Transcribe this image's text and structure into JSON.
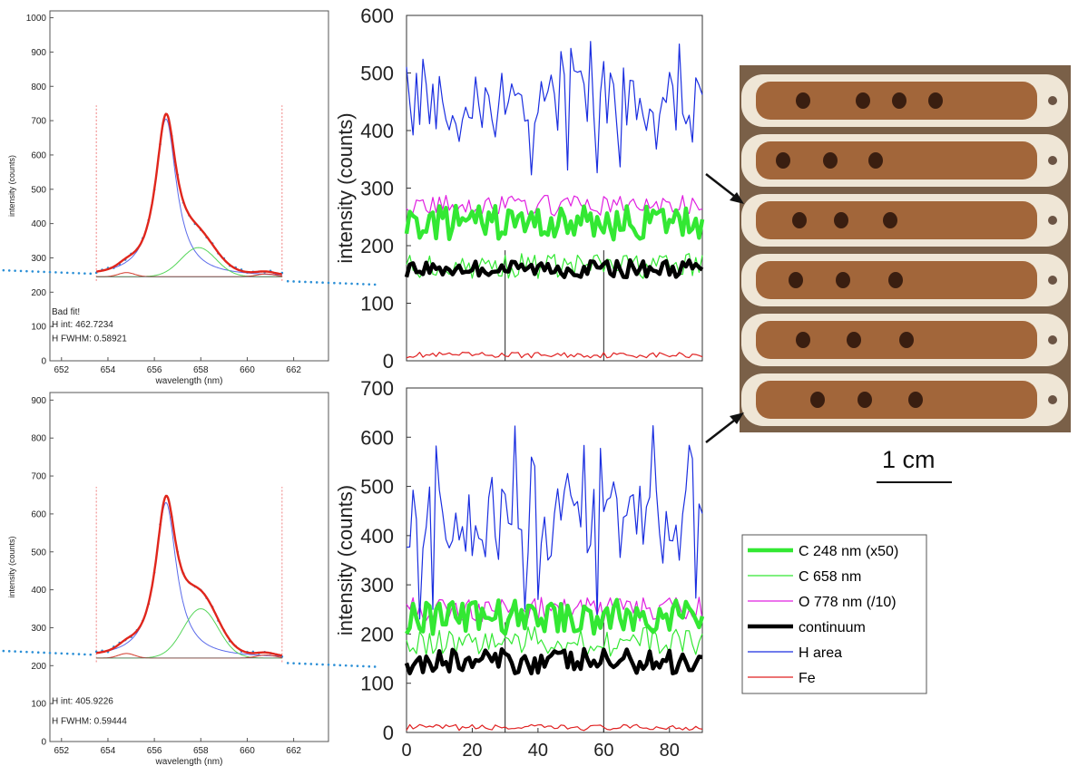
{
  "chart_data": [
    {
      "id": "spectrum_top",
      "type": "line",
      "xlabel": "wavelength (nm)",
      "ylabel": "intensity (counts)",
      "xlim": [
        651.5,
        663.5
      ],
      "ylim": [
        0,
        1020
      ],
      "xticks": [
        652,
        654,
        656,
        658,
        660,
        662
      ],
      "yticks": [
        0,
        100,
        200,
        300,
        400,
        500,
        600,
        700,
        800,
        900,
        1000
      ],
      "fit_window": [
        653.5,
        661.5
      ],
      "peak_H": 656.5,
      "peak_C": 657.9,
      "baseline": 245,
      "peak_H_fit": 725,
      "peak_C_fit": 400,
      "annotations": [
        "Bad fit!",
        "H int: 462.7234",
        "H FWHM: 0.58921"
      ],
      "series": [
        {
          "role": "data",
          "style": "dotted",
          "color": "#2b8fd6"
        },
        {
          "role": "total fit",
          "color": "#e0261c"
        },
        {
          "role": "H component",
          "color": "#5b6bea"
        },
        {
          "role": "C component",
          "color": "#56d65a"
        },
        {
          "role": "Fe component",
          "color": "#d23a2a"
        }
      ]
    },
    {
      "id": "spectrum_bottom",
      "type": "line",
      "xlabel": "wavelength (nm)",
      "ylabel": "intensity (counts)",
      "xlim": [
        651.5,
        663.5
      ],
      "ylim": [
        0,
        920
      ],
      "xticks": [
        652,
        654,
        656,
        658,
        660,
        662
      ],
      "yticks": [
        0,
        100,
        200,
        300,
        400,
        500,
        600,
        700,
        800,
        900
      ],
      "fit_window": [
        653.5,
        661.5
      ],
      "peak_H": 656.5,
      "peak_C": 658.0,
      "baseline": 220,
      "peak_H_fit": 650,
      "peak_C_fit": 420,
      "annotations": [
        "H int: 405.9226",
        "H FWHM: 0.59444"
      ],
      "series": [
        {
          "role": "data",
          "style": "dotted",
          "color": "#2b8fd6"
        },
        {
          "role": "total fit",
          "color": "#e0261c"
        },
        {
          "role": "H component",
          "color": "#5b6bea"
        },
        {
          "role": "C component",
          "color": "#56d65a"
        },
        {
          "role": "Fe component",
          "color": "#d23a2a"
        }
      ]
    },
    {
      "id": "profile_top",
      "type": "line",
      "ylabel": "intensity (counts)",
      "xlim": [
        0,
        90
      ],
      "ylim": [
        0,
        600
      ],
      "yticks": [
        0,
        100,
        200,
        300,
        400,
        500,
        600
      ],
      "separators": [
        30,
        60
      ],
      "levels": {
        "H area": 455,
        "O 778 nm (/10)": 270,
        "C 248 nm (x50)": 240,
        "C 658 nm": 165,
        "continuum": 160,
        "Fe": 10
      },
      "spread": {
        "H area": 55,
        "O 778 nm (/10)": 18,
        "C 248 nm (x50)": 30,
        "C 658 nm": 22,
        "continuum": 15,
        "Fe": 5
      }
    },
    {
      "id": "profile_bottom",
      "type": "line",
      "ylabel": "intensity (counts)",
      "xlim": [
        0,
        90
      ],
      "ylim": [
        0,
        700
      ],
      "yticks": [
        0,
        100,
        200,
        300,
        400,
        500,
        600,
        700
      ],
      "xticks": [
        0,
        20,
        40,
        60,
        80
      ],
      "separators": [
        30,
        60
      ],
      "levels": {
        "H area": 420,
        "O 778 nm (/10)": 250,
        "C 248 nm (x50)": 235,
        "C 658 nm": 185,
        "continuum": 145,
        "Fe": 10
      },
      "spread": {
        "H area": 80,
        "O 778 nm (/10)": 25,
        "C 248 nm (x50)": 35,
        "C 658 nm": 30,
        "continuum": 25,
        "Fe": 6
      }
    }
  ],
  "legend": [
    {
      "label": "C 248 nm (x50)",
      "color": "#33e833",
      "width": 4.5
    },
    {
      "label": "C 658 nm",
      "color": "#33e833",
      "width": 1.2
    },
    {
      "label": "O 778 nm (/10)",
      "color": "#e020e0",
      "width": 1.2
    },
    {
      "label": "continuum",
      "color": "#000000",
      "width": 4.5
    },
    {
      "label": "H area",
      "color": "#1a2ee0",
      "width": 1.2
    },
    {
      "label": "Fe",
      "color": "#e02020",
      "width": 1.2
    }
  ],
  "scale_bar": {
    "label": "1 cm"
  }
}
